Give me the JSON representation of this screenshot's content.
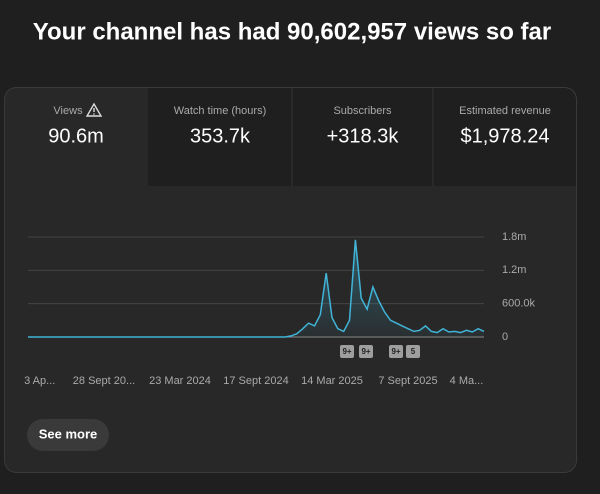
{
  "header": {
    "title": "Your channel has had 90,602,957 views so far"
  },
  "metrics": [
    {
      "label": "Views",
      "value": "90.6m"
    },
    {
      "label": "Watch time (hours)",
      "value": "353.7k"
    },
    {
      "label": "Subscribers",
      "value": "+318.3k"
    },
    {
      "label": "Estimated revenue",
      "value": "$1,978.24"
    }
  ],
  "chart_data": {
    "type": "line",
    "categories": [
      null,
      null,
      "3 Ap...",
      null,
      null,
      null,
      null,
      null,
      null,
      null,
      null,
      null,
      null,
      "28 Sept 20...",
      null,
      null,
      null,
      null,
      null,
      null,
      null,
      null,
      null,
      null,
      null,
      null,
      "23 Mar 2024",
      null,
      null,
      null,
      null,
      null,
      null,
      null,
      null,
      null,
      null,
      null,
      null,
      "17 Sept 2024",
      null,
      null,
      null,
      null,
      null,
      null,
      null,
      null,
      null,
      null,
      null,
      null,
      "14 Mar 2025",
      null,
      null,
      null,
      null,
      null,
      null,
      null,
      null,
      null,
      null,
      null,
      null,
      "7 Sept 2025",
      null,
      null,
      null,
      null,
      null,
      null,
      null,
      null,
      null,
      "4 Ma...",
      null,
      null,
      null
    ],
    "values": [
      0,
      0,
      0,
      0,
      0,
      0,
      0,
      0,
      0,
      0,
      0,
      0,
      0,
      0,
      0,
      0,
      0,
      0,
      0,
      0,
      0,
      0,
      0,
      0,
      0,
      0,
      0,
      0,
      0,
      0,
      0,
      0,
      0,
      0,
      0,
      0,
      0,
      0,
      0,
      0,
      0,
      0,
      0,
      0,
      0,
      20000,
      60000,
      150000,
      250000,
      200000,
      400000,
      1150000,
      350000,
      150000,
      100000,
      300000,
      1750000,
      700000,
      500000,
      900000,
      650000,
      450000,
      300000,
      250000,
      200000,
      150000,
      100000,
      120000,
      200000,
      100000,
      80000,
      150000,
      90000,
      100000,
      80000,
      120000,
      90000,
      150000,
      100000
    ],
    "color": "#41b4d8",
    "ylim": [
      0,
      1800000
    ],
    "yticks": [
      0,
      {
        "value": 600000,
        "label": "600.0k"
      },
      {
        "value": 1200000,
        "label": "1.2m"
      },
      {
        "value": 1800000,
        "label": "1.8m"
      }
    ],
    "grid": true,
    "annotations": [
      "9+",
      "9+",
      "9+",
      "5"
    ]
  },
  "button": "See more"
}
